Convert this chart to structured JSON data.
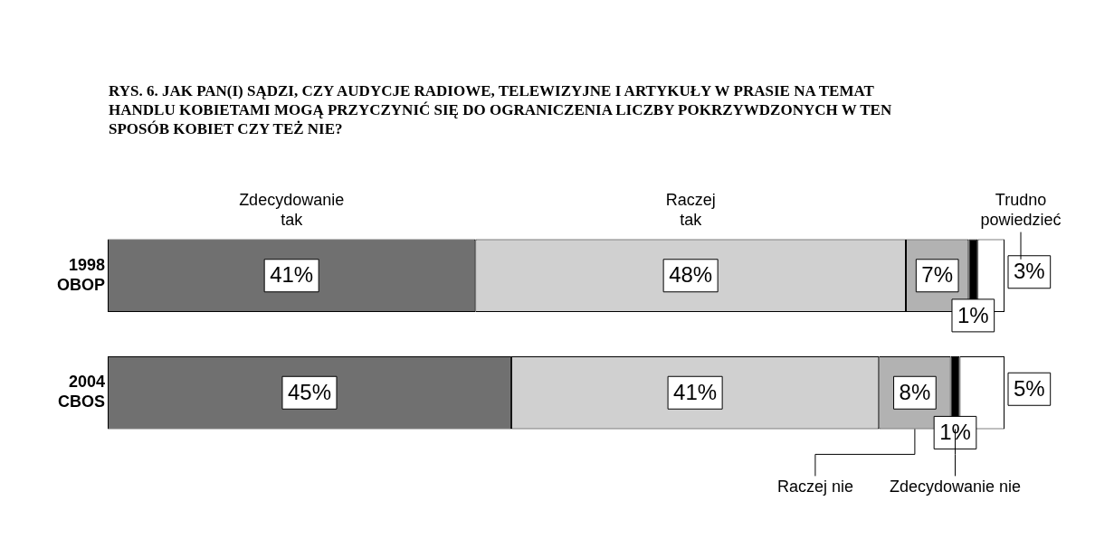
{
  "chart_data": {
    "type": "bar",
    "orientation": "horizontal",
    "stacked": true,
    "title": "RYS. 6. JAK PAN(I) SĄDZI, CZY AUDYCJE RADIOWE, TELEWIZYJNE I ARTYKUŁY W PRASIE NA TEMAT HANDLU KOBIETAMI MOGĄ PRZYCZYNIĆ SIĘ DO OGRANICZENIA LICZBY POKRZYWDZONYCH W TEN SPOSÓB KOBIET CZY TEŻ NIE?",
    "categories": [
      "1998 OBOP",
      "2004 CBOS"
    ],
    "xlim": [
      0,
      100
    ],
    "series": [
      {
        "name": "Zdecydowanie tak",
        "color": "#707070",
        "values": [
          41,
          45
        ],
        "value_labels": [
          "41%",
          "45%"
        ]
      },
      {
        "name": "Raczej tak",
        "color": "#d0d0d0",
        "values": [
          48,
          41
        ],
        "value_labels": [
          "48%",
          "41%"
        ]
      },
      {
        "name": "Raczej nie",
        "color": "#b2b2b2",
        "values": [
          7,
          8
        ],
        "value_labels": [
          "7%",
          "8%"
        ]
      },
      {
        "name": "Zdecydowanie nie",
        "color": "#000000",
        "values": [
          1,
          1
        ],
        "value_labels": [
          "1%",
          "1%"
        ]
      },
      {
        "name": "Trudno powiedzieć",
        "color": "#ffffff",
        "values": [
          3,
          5
        ],
        "value_labels": [
          "3%",
          "5%"
        ]
      }
    ],
    "tick_labels": "y",
    "legend": false
  }
}
